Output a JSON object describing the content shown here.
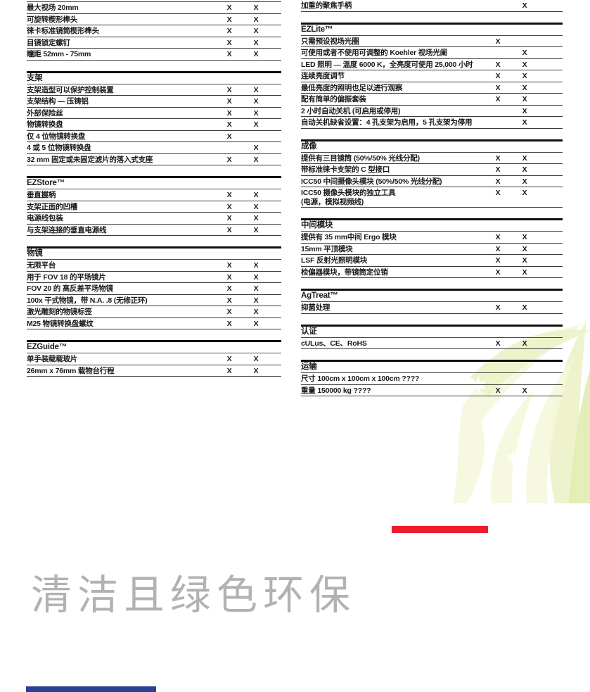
{
  "table": {
    "mark": "X"
  },
  "columns": [
    {
      "name": "left",
      "sections": [
        {
          "title": null,
          "cut_top": true,
          "rows": [
            {
              "label": "最大视场 20mm",
              "c1": "X",
              "c2": "X"
            },
            {
              "label": "可旋转楔形榫头",
              "c1": "X",
              "c2": "X"
            },
            {
              "label": "徕卡标准镜筒楔形榫头",
              "c1": "X",
              "c2": "X"
            },
            {
              "label": "目镜锁定螺钉",
              "c1": "X",
              "c2": "X"
            },
            {
              "label": "瞳距 52mm - 75mm",
              "c1": "X",
              "c2": "X"
            }
          ]
        },
        {
          "title": "支架",
          "rows": [
            {
              "label": "支架造型可以保护控制装置",
              "c1": "X",
              "c2": "X"
            },
            {
              "label": "支架结构 — 压铸铝",
              "c1": "X",
              "c2": "X"
            },
            {
              "label": "外部保险丝",
              "c1": "X",
              "c2": "X"
            },
            {
              "label": "物镜转换盘",
              "c1": "X",
              "c2": "X"
            },
            {
              "label": "仅 4 位物镜转换盘",
              "c1": "X",
              "c2": ""
            },
            {
              "label": "4 或 5 位物镜转换盘",
              "c1": "",
              "c2": "X"
            },
            {
              "label": "32 mm 固定或未固定滤片的落入式支座",
              "c1": "X",
              "c2": "X"
            }
          ]
        },
        {
          "title": "EZStore™",
          "rows": [
            {
              "label": "垂直握柄",
              "c1": "X",
              "c2": "X"
            },
            {
              "label": "支架正面的凹槽",
              "c1": "X",
              "c2": "X"
            },
            {
              "label": "电源线包装",
              "c1": "X",
              "c2": "X"
            },
            {
              "label": "与支架连接的垂直电源线",
              "c1": "X",
              "c2": "X"
            }
          ]
        },
        {
          "title": "物镜",
          "rows": [
            {
              "label": "无限平台",
              "c1": "X",
              "c2": "X"
            },
            {
              "label": "用于 FOV 18 的平场镜片",
              "c1": "X",
              "c2": "X"
            },
            {
              "label": "FOV 20 的 高反差平场物镜",
              "c1": "X",
              "c2": "X"
            },
            {
              "label": "100x 干式物镜，带 N.A. .8 (无修正环)",
              "c1": "X",
              "c2": "X"
            },
            {
              "label": "激光雕刻的物镜标签",
              "c1": "X",
              "c2": "X"
            },
            {
              "label": "M25 物镜转换盘螺纹",
              "c1": "X",
              "c2": "X"
            }
          ]
        },
        {
          "title": "EZGuide™",
          "rows": [
            {
              "label": "单手装载载玻片",
              "c1": "X",
              "c2": "X"
            },
            {
              "label": "26mm x 76mm 载物台行程",
              "c1": "X",
              "c2": "X"
            }
          ]
        }
      ]
    },
    {
      "name": "right",
      "sections": [
        {
          "title": null,
          "cut_top": false,
          "rows": [
            {
              "label": "加重的聚焦手柄",
              "c1": "",
              "c2": "X"
            }
          ]
        },
        {
          "title": "EZLite™",
          "rows": [
            {
              "label": "只需预设视场光圈",
              "c1": "X",
              "c2": ""
            },
            {
              "label": "可使用或者不使用可调整的 Koehler 视场光阑",
              "c1": "",
              "c2": "X"
            },
            {
              "label": "LED 照明 — 温度 6000 K，全亮度可使用 25,000 小时",
              "c1": "X",
              "c2": "X"
            },
            {
              "label": "连续亮度调节",
              "c1": "X",
              "c2": "X"
            },
            {
              "label": "最低亮度的照明也足以进行观察",
              "c1": "X",
              "c2": "X"
            },
            {
              "label": "配有简单的偏振套装",
              "c1": "X",
              "c2": "X"
            },
            {
              "label": "2 小时自动关机 (可启用或停用)",
              "c1": "",
              "c2": "X"
            },
            {
              "label": "自动关机缺省设置：4 孔支架为启用，5 孔支架为停用",
              "c1": "",
              "c2": "X"
            }
          ]
        },
        {
          "title": "成像",
          "rows": [
            {
              "label": "提供有三目镜筒 (50%/50% 光线分配)",
              "c1": "X",
              "c2": "X"
            },
            {
              "label": "带标准徕卡支架的 C 型接口",
              "c1": "X",
              "c2": "X"
            },
            {
              "label": "ICC50 中间摄像头模块 (50%/50% 光线分配)",
              "c1": "X",
              "c2": "X"
            },
            {
              "label": "ICC50 摄像头模块的独立工具",
              "sub": "(电源，模拟视频线)",
              "c1": "X",
              "c2": "X"
            }
          ]
        },
        {
          "title": "中间模块",
          "rows": [
            {
              "label": "提供有 35 mm中间 Ergo 模块",
              "c1": "X",
              "c2": "X"
            },
            {
              "label": "15mm 平顶模块",
              "c1": "X",
              "c2": "X"
            },
            {
              "label": "LSF 反射光照明模块",
              "c1": "X",
              "c2": "X"
            },
            {
              "label": "检偏器模块，带镜筒定位销",
              "c1": "X",
              "c2": "X"
            }
          ]
        },
        {
          "title": "AgTreat™",
          "rows": [
            {
              "label": "抑菌处理",
              "c1": "X",
              "c2": "X"
            }
          ]
        },
        {
          "title": "认证",
          "rows": [
            {
              "label": "cULus、CE、RoHS",
              "c1": "X",
              "c2": "X"
            }
          ]
        },
        {
          "title": "运输",
          "rows": [
            {
              "label": "尺寸 100cm x 100cm x 100cm ????",
              "c1": "",
              "c2": ""
            },
            {
              "label": "重量 150000 kg ????",
              "c1": "X",
              "c2": "X"
            }
          ]
        }
      ]
    }
  ],
  "footer": {
    "headline": "清洁且绿色环保",
    "headline_color": "#b2b2b2",
    "red_bar_color": "#ec1c2d",
    "blue_bar_color": "#2b3f97"
  },
  "decor": {
    "plant_color_light": "#f5f8dd",
    "plant_color_mid": "#ecf2c8",
    "plant_color_deep": "#e2ecb4"
  }
}
